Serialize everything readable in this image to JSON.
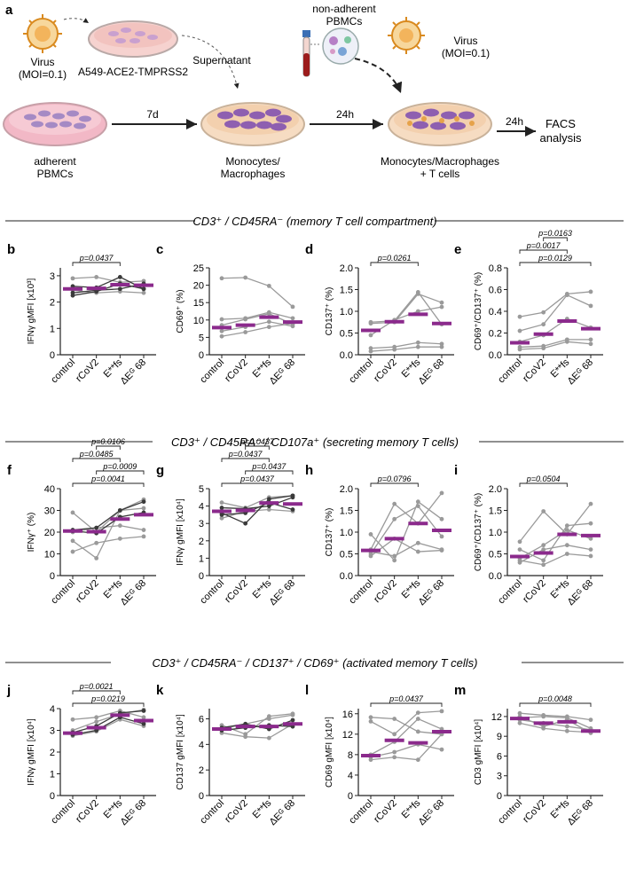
{
  "workflow": {
    "panel_label": "a",
    "virus_left": "Virus",
    "virus_left_moi": "(MOI=0.1)",
    "cell_line": "A549-ACE2-TMPRSS2",
    "supernatant": "Supernatant",
    "non_adherent_1": "non-adherent",
    "non_adherent_2": "PBMCs",
    "virus_right": "Virus",
    "virus_right_moi": "(MOI=0.1)",
    "adherent_1": "adherent",
    "adherent_2": "PBMCs",
    "step_7d": "7d",
    "mono_1": "Monocytes/",
    "mono_2": "Macrophages",
    "step_24h_a": "24h",
    "mono_t_1": "Monocytes/Macrophages",
    "mono_t_2": "+ T cells",
    "step_24h_b": "24h",
    "facs_1": "FACS",
    "facs_2": "analysis",
    "colors": {
      "virus": "#d98a1f",
      "dish_pink": "#f2b8c6",
      "cell": "#8e5fb0",
      "tube": "#9c1c1c"
    }
  },
  "sections": [
    {
      "title": "CD3⁺ / CD45RA⁻ (memory T cell compartment)"
    },
    {
      "title": "CD3⁺ / CD45RA⁻ / CD107a⁺ (secreting memory T cells)"
    },
    {
      "title": "CD3⁺ / CD45RA⁻ / CD137⁺ / CD69⁺ (activated memory T cells)"
    }
  ],
  "chart_data": [
    {
      "id": "b",
      "type": "line",
      "ylabel": "IFNγ gMFI [x10³]",
      "yticks": [
        "0",
        "1",
        "2",
        "3"
      ],
      "ylim": [
        0,
        3.3
      ],
      "categories": [
        "control",
        "rCoV2",
        "E**fs",
        "ΔEᴳ 68"
      ],
      "means": [
        2.5,
        2.52,
        2.66,
        2.64
      ],
      "donors_dark": [
        [
          2.6,
          2.55,
          2.95,
          2.5
        ],
        [
          2.35,
          2.45,
          2.5,
          2.7
        ],
        [
          2.25,
          2.4,
          2.7,
          2.5
        ]
      ],
      "donors_grey": [
        [
          2.9,
          2.95,
          2.75,
          2.8
        ],
        [
          2.45,
          2.35,
          2.4,
          2.35
        ]
      ],
      "brackets": [
        {
          "from": 0,
          "to": 2,
          "label": "p=0.0437"
        }
      ]
    },
    {
      "id": "c",
      "type": "line",
      "ylabel": "CD69⁺ (%)",
      "yticks": [
        "0",
        "5",
        "10",
        "15",
        "20",
        "25"
      ],
      "ylim": [
        0,
        25
      ],
      "categories": [
        "control",
        "rCoV2",
        "E**fs",
        "ΔEᴳ 68"
      ],
      "means": [
        7.8,
        8.5,
        10.8,
        9.4
      ],
      "donors_dark": [],
      "donors_grey": [
        [
          22,
          22.2,
          19.8,
          13.8
        ],
        [
          10.2,
          10.5,
          12.2,
          10.5
        ],
        [
          8.5,
          10.2,
          11.8,
          8.8
        ],
        [
          6.8,
          8.0,
          9.5,
          8.2
        ],
        [
          5.3,
          6.5,
          8.0,
          9.0
        ]
      ],
      "brackets": []
    },
    {
      "id": "d",
      "type": "line",
      "ylabel": "CD137⁺ (%)",
      "yticks": [
        "0.0",
        "0.5",
        "1.0",
        "1.5",
        "2.0"
      ],
      "ylim": [
        0,
        2.0
      ],
      "categories": [
        "control",
        "rCoV2",
        "E**fs",
        "ΔEᴳ 68"
      ],
      "means": [
        0.56,
        0.76,
        0.93,
        0.72
      ],
      "donors_dark": [],
      "donors_grey": [
        [
          0.75,
          0.78,
          1.44,
          0.7
        ],
        [
          0.72,
          0.75,
          1.4,
          1.2
        ],
        [
          0.45,
          0.8,
          1.0,
          1.1
        ],
        [
          0.15,
          0.18,
          0.28,
          0.25
        ],
        [
          0.08,
          0.12,
          0.18,
          0.18
        ]
      ],
      "brackets": [
        {
          "from": 0,
          "to": 2,
          "label": "p=0.0261"
        }
      ]
    },
    {
      "id": "e",
      "type": "line",
      "ylabel": "CD69⁺/CD137⁺ (%)",
      "yticks": [
        "0.0",
        "0.2",
        "0.4",
        "0.6",
        "0.8"
      ],
      "ylim": [
        0,
        0.8
      ],
      "categories": [
        "control",
        "rCoV2",
        "E**fs",
        "ΔEᴳ 68"
      ],
      "means": [
        0.11,
        0.19,
        0.31,
        0.24
      ],
      "donors_dark": [],
      "donors_grey": [
        [
          0.35,
          0.39,
          0.56,
          0.58
        ],
        [
          0.22,
          0.28,
          0.55,
          0.45
        ],
        [
          0.12,
          0.18,
          0.33,
          0.25
        ],
        [
          0.07,
          0.08,
          0.14,
          0.14
        ],
        [
          0.05,
          0.06,
          0.12,
          0.1
        ]
      ],
      "brackets": [
        {
          "from": 0,
          "to": 3,
          "label": "p=0.0129"
        },
        {
          "from": 0,
          "to": 2,
          "label": "p=0.0017"
        },
        {
          "from": 1,
          "to": 2,
          "label": "p=0.0163"
        }
      ]
    },
    {
      "id": "f",
      "type": "line",
      "ylabel": "IFNγ⁺ (%)",
      "yticks": [
        "0",
        "10",
        "20",
        "30",
        "40"
      ],
      "ylim": [
        0,
        40
      ],
      "categories": [
        "control",
        "rCoV2",
        "E**fs",
        "ΔEᴳ 68"
      ],
      "means": [
        20.5,
        20.2,
        26,
        28
      ],
      "donors_dark": [
        [
          21,
          22,
          30,
          34
        ],
        [
          20.5,
          19.5,
          27,
          29
        ]
      ],
      "donors_grey": [
        [
          29,
          20,
          30,
          35
        ],
        [
          16,
          8,
          30,
          31
        ],
        [
          11,
          15,
          17,
          18
        ],
        [
          20,
          22,
          23,
          21
        ]
      ],
      "brackets": [
        {
          "from": 0,
          "to": 3,
          "label": "p=0.0041"
        },
        {
          "from": 1,
          "to": 3,
          "label": "p=0.0009"
        },
        {
          "from": 0,
          "to": 2,
          "label": "p=0.0485"
        },
        {
          "from": 1,
          "to": 2,
          "label": "p=0.0106"
        }
      ]
    },
    {
      "id": "g",
      "type": "line",
      "ylabel": "IFNγ gMFI [x10⁴]",
      "yticks": [
        "0",
        "1",
        "2",
        "3",
        "4",
        "5"
      ],
      "ylim": [
        0,
        5
      ],
      "categories": [
        "control",
        "rCoV2",
        "E**fs",
        "ΔEᴳ 68"
      ],
      "means": [
        3.7,
        3.75,
        4.18,
        4.12
      ],
      "donors_dark": [
        [
          3.6,
          3.0,
          4.4,
          4.6
        ],
        [
          3.9,
          3.85,
          4.0,
          4.5
        ],
        [
          3.5,
          3.6,
          4.2,
          3.8
        ]
      ],
      "donors_grey": [
        [
          4.2,
          3.9,
          4.5,
          4.6
        ],
        [
          3.3,
          3.7,
          3.8,
          3.7
        ]
      ],
      "brackets": [
        {
          "from": 0,
          "to": 3,
          "label": "p=0.0437"
        },
        {
          "from": 1,
          "to": 3,
          "label": "p=0.0437"
        },
        {
          "from": 0,
          "to": 2,
          "label": "p=0.0437"
        },
        {
          "from": 1,
          "to": 2,
          "label": "p=0.0437"
        }
      ]
    },
    {
      "id": "h",
      "type": "line",
      "ylabel": "CD137⁺ (%)",
      "yticks": [
        "0.0",
        "0.5",
        "1.0",
        "1.5",
        "2.0"
      ],
      "ylim": [
        0,
        2.0
      ],
      "categories": [
        "control",
        "rCoV2",
        "E**fs",
        "ΔEᴳ 68"
      ],
      "means": [
        0.58,
        0.85,
        1.2,
        1.04
      ],
      "donors_dark": [],
      "donors_grey": [
        [
          0.95,
          0.35,
          1.7,
          1.3
        ],
        [
          0.6,
          1.65,
          1.2,
          1.9
        ],
        [
          0.5,
          1.3,
          1.6,
          0.9
        ],
        [
          0.45,
          0.85,
          0.55,
          0.58
        ],
        [
          0.55,
          0.45,
          0.75,
          0.6
        ]
      ],
      "brackets": [
        {
          "from": 0,
          "to": 2,
          "label": "p=0.0796"
        }
      ]
    },
    {
      "id": "i",
      "type": "line",
      "ylabel": "CD69⁺/CD137⁺ (%)",
      "yticks": [
        "0.0",
        "0.5",
        "1.0",
        "1.5",
        "2.0"
      ],
      "ylim": [
        0,
        2.0
      ],
      "categories": [
        "control",
        "rCoV2",
        "E**fs",
        "ΔEᴳ 68"
      ],
      "means": [
        0.44,
        0.52,
        0.95,
        0.92
      ],
      "donors_dark": [],
      "donors_grey": [
        [
          0.78,
          1.48,
          0.95,
          1.65
        ],
        [
          0.6,
          0.35,
          1.15,
          1.2
        ],
        [
          0.4,
          0.7,
          1.05,
          0.85
        ],
        [
          0.3,
          0.6,
          0.7,
          0.6
        ],
        [
          0.35,
          0.25,
          0.5,
          0.45
        ]
      ],
      "brackets": [
        {
          "from": 0,
          "to": 2,
          "label": "p=0.0504"
        }
      ]
    },
    {
      "id": "j",
      "type": "line",
      "ylabel": "IFNγ gMFI [x10⁴]",
      "yticks": [
        "0",
        "1",
        "2",
        "3",
        "4"
      ],
      "ylim": [
        0,
        4
      ],
      "categories": [
        "control",
        "rCoV2",
        "E**fs",
        "ΔEᴳ 68"
      ],
      "means": [
        2.87,
        3.12,
        3.7,
        3.45
      ],
      "donors_dark": [
        [
          2.9,
          3.2,
          3.8,
          3.9
        ],
        [
          2.8,
          3.0,
          3.6,
          3.3
        ]
      ],
      "donors_grey": [
        [
          3.5,
          3.6,
          3.9,
          3.6
        ],
        [
          2.75,
          2.95,
          3.5,
          3.2
        ],
        [
          3.0,
          3.4,
          3.75,
          3.95
        ]
      ],
      "brackets": [
        {
          "from": 0,
          "to": 3,
          "label": "p=0.0219"
        },
        {
          "from": 0,
          "to": 2,
          "label": "p=0.0021"
        }
      ]
    },
    {
      "id": "k",
      "type": "line",
      "ylabel": "CD137 gMFI [x10⁴]",
      "yticks": [
        "0",
        "2",
        "4",
        "6"
      ],
      "ylim": [
        0,
        6.8
      ],
      "categories": [
        "control",
        "rCoV2",
        "E**fs",
        "ΔEᴳ 68"
      ],
      "means": [
        5.2,
        5.4,
        5.4,
        5.6
      ],
      "donors_dark": [
        [
          5.3,
          5.6,
          5.2,
          5.9
        ],
        [
          5.1,
          5.3,
          5.5,
          5.4
        ]
      ],
      "donors_grey": [
        [
          5.5,
          4.8,
          6.2,
          6.4
        ],
        [
          4.9,
          4.6,
          4.5,
          5.6
        ],
        [
          5.2,
          5.6,
          6.0,
          6.3
        ]
      ],
      "brackets": []
    },
    {
      "id": "l",
      "type": "line",
      "ylabel": "CD69 gMFI [x10⁴]",
      "yticks": [
        "0",
        "4",
        "8",
        "12",
        "16"
      ],
      "ylim": [
        0,
        17
      ],
      "categories": [
        "control",
        "rCoV2",
        "E**fs",
        "ΔEᴳ 68"
      ],
      "means": [
        7.8,
        10.8,
        10.3,
        12.5
      ],
      "donors_dark": [],
      "donors_grey": [
        [
          15.3,
          15.0,
          12.5,
          12.0
        ],
        [
          14.5,
          12.0,
          16.2,
          16.5
        ],
        [
          8.0,
          10.5,
          15.0,
          13.0
        ],
        [
          7.0,
          7.5,
          7.0,
          12.0
        ],
        [
          7.5,
          8.5,
          10.0,
          9.0
        ]
      ],
      "brackets": [
        {
          "from": 0,
          "to": 3,
          "label": "p=0.0437"
        }
      ]
    },
    {
      "id": "m",
      "type": "line",
      "ylabel": "CD3 gMFI [x10⁴]",
      "yticks": [
        "0",
        "3",
        "6",
        "9",
        "12"
      ],
      "ylim": [
        0,
        13.2
      ],
      "categories": [
        "control",
        "rCoV2",
        "E**fs",
        "ΔEᴳ 68"
      ],
      "means": [
        11.7,
        11.0,
        11.2,
        9.8
      ],
      "donors_dark": [],
      "donors_grey": [
        [
          12.5,
          12.2,
          12.0,
          11.5
        ],
        [
          12.0,
          10.5,
          11.5,
          9.5
        ],
        [
          11.5,
          11.0,
          10.5,
          10.0
        ],
        [
          11.0,
          10.2,
          9.8,
          9.6
        ],
        [
          11.8,
          12.0,
          11.8,
          10.2
        ]
      ],
      "brackets": [
        {
          "from": 0,
          "to": 3,
          "label": "p=0.0048"
        }
      ]
    }
  ],
  "colors": {
    "mean": "#8b2a8c",
    "dark": "#3a3a3a",
    "grey": "#9a9a9a",
    "axis": "#222222"
  }
}
